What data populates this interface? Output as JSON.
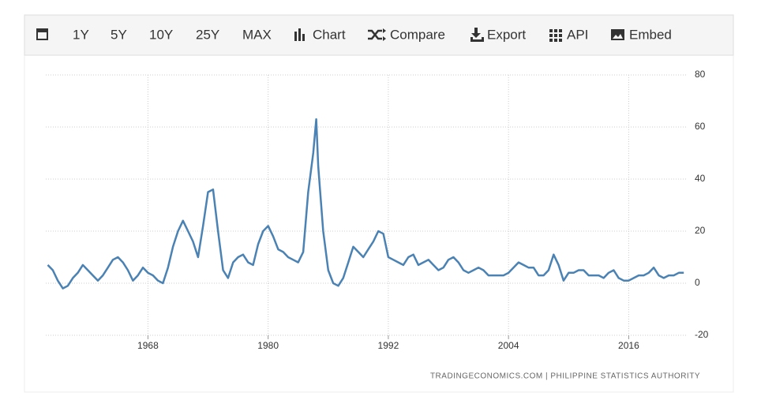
{
  "toolbar": [
    "1Y",
    "5Y",
    "10Y",
    "25Y",
    "MAX",
    "Chart",
    "Compare",
    "Export",
    "API",
    "Embed"
  ],
  "chart_data": {
    "type": "line",
    "x": [
      1958,
      1958.5,
      1959,
      1959.5,
      1960,
      1960.5,
      1961,
      1961.5,
      1962,
      1962.5,
      1963,
      1963.5,
      1964,
      1964.5,
      1965,
      1965.5,
      1966,
      1966.5,
      1967,
      1967.5,
      1968,
      1968.5,
      1969,
      1969.5,
      1970,
      1970.5,
      1971,
      1971.5,
      1972,
      1972.5,
      1973,
      1973.5,
      1974,
      1974.5,
      1975,
      1975.5,
      1976,
      1976.5,
      1977,
      1977.5,
      1978,
      1978.5,
      1979,
      1979.5,
      1980,
      1980.5,
      1981,
      1981.5,
      1982,
      1982.5,
      1983,
      1983.5,
      1984,
      1984.5,
      1984.8,
      1985,
      1985.5,
      1986,
      1986.5,
      1987,
      1987.5,
      1988,
      1988.5,
      1989,
      1989.5,
      1990,
      1990.5,
      1991,
      1991.5,
      1992,
      1992.5,
      1993,
      1993.5,
      1994,
      1994.5,
      1995,
      1995.5,
      1996,
      1996.5,
      1997,
      1997.5,
      1998,
      1998.5,
      1999,
      1999.5,
      2000,
      2000.5,
      2001,
      2001.5,
      2002,
      2002.5,
      2003,
      2003.5,
      2004,
      2004.5,
      2005,
      2005.5,
      2006,
      2006.5,
      2007,
      2007.5,
      2008,
      2008.5,
      2009,
      2009.5,
      2010,
      2010.5,
      2011,
      2011.5,
      2012,
      2012.5,
      2013,
      2013.5,
      2014,
      2014.5,
      2015,
      2015.5,
      2016,
      2016.5,
      2017,
      2017.5,
      2018,
      2018.5,
      2019,
      2019.5,
      2020,
      2020.5,
      2021,
      2021.5
    ],
    "values": [
      7,
      5,
      1,
      -2,
      -1,
      2,
      4,
      7,
      5,
      3,
      1,
      3,
      6,
      9,
      10,
      8,
      5,
      1,
      3,
      6,
      4,
      3,
      1,
      0,
      6,
      14,
      20,
      24,
      20,
      16,
      10,
      22,
      35,
      36,
      20,
      5,
      2,
      8,
      10,
      11,
      8,
      7,
      15,
      20,
      22,
      18,
      13,
      12,
      10,
      9,
      8,
      12,
      35,
      50,
      63,
      45,
      20,
      5,
      0,
      -1,
      2,
      8,
      14,
      12,
      10,
      13,
      16,
      20,
      19,
      10,
      9,
      8,
      7,
      10,
      11,
      7,
      8,
      9,
      7,
      5,
      6,
      9,
      10,
      8,
      5,
      4,
      5,
      6,
      5,
      3,
      3,
      3,
      3,
      4,
      6,
      8,
      7,
      6,
      6,
      3,
      3,
      5,
      11,
      7,
      1,
      4,
      4,
      5,
      5,
      3,
      3,
      3,
      2,
      4,
      5,
      2,
      1,
      1,
      2,
      3,
      3,
      4,
      6,
      3,
      2,
      3,
      3,
      4,
      4
    ],
    "color": "#4a82b4",
    "xlim": [
      1957.8,
      2021.8
    ],
    "xticks": [
      1968,
      1980,
      1992,
      2004,
      2016
    ],
    "ylim": [
      -20,
      80
    ],
    "yticks": [
      -20,
      0,
      20,
      40,
      60,
      80
    ],
    "grid": true,
    "source": "TRADINGECONOMICS.COM | PHILIPPINE STATISTICS AUTHORITY"
  }
}
